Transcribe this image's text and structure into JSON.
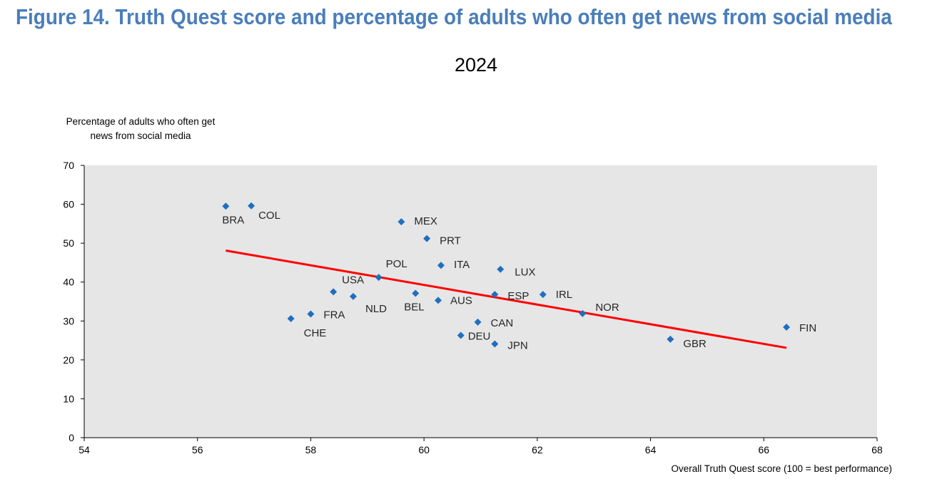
{
  "figure": {
    "title": "Figure 14. Truth Quest score and percentage of adults who often get news from social media",
    "subtitle": "2024"
  },
  "colors": {
    "title": "#4a7ebb",
    "marker": "#1f6fbf",
    "trend": "#ff0000",
    "plot_bg": "#e6e6e6"
  },
  "chart_data": {
    "type": "scatter",
    "ylabel_lines": [
      "Percentage of adults who often get",
      "news from social media"
    ],
    "xlabel": "Overall Truth Quest score (100 = best performance)",
    "xlim": [
      54,
      68
    ],
    "ylim": [
      0,
      70
    ],
    "xticks": [
      54,
      56,
      58,
      60,
      62,
      64,
      66,
      68
    ],
    "yticks": [
      0,
      10,
      20,
      30,
      40,
      50,
      60,
      70
    ],
    "points": [
      {
        "label": "BRA",
        "x": 56.5,
        "y": 59.5
      },
      {
        "label": "COL",
        "x": 56.95,
        "y": 59.6
      },
      {
        "label": "MEX",
        "x": 59.6,
        "y": 55.5
      },
      {
        "label": "PRT",
        "x": 60.05,
        "y": 51.2
      },
      {
        "label": "POL",
        "x": 59.2,
        "y": 41.2
      },
      {
        "label": "ITA",
        "x": 60.3,
        "y": 44.3
      },
      {
        "label": "LUX",
        "x": 61.35,
        "y": 43.3
      },
      {
        "label": "USA",
        "x": 58.4,
        "y": 37.5
      },
      {
        "label": "NLD",
        "x": 58.75,
        "y": 36.3
      },
      {
        "label": "BEL",
        "x": 59.85,
        "y": 37.1
      },
      {
        "label": "AUS",
        "x": 60.25,
        "y": 35.3
      },
      {
        "label": "ESP",
        "x": 61.25,
        "y": 36.8
      },
      {
        "label": "IRL",
        "x": 62.1,
        "y": 36.8
      },
      {
        "label": "NOR",
        "x": 62.8,
        "y": 31.9
      },
      {
        "label": "FRA",
        "x": 58.0,
        "y": 31.8
      },
      {
        "label": "CHE",
        "x": 57.65,
        "y": 30.6
      },
      {
        "label": "CAN",
        "x": 60.95,
        "y": 29.7
      },
      {
        "label": "DEU",
        "x": 60.65,
        "y": 26.3
      },
      {
        "label": "JPN",
        "x": 61.25,
        "y": 24.1
      },
      {
        "label": "GBR",
        "x": 64.35,
        "y": 25.3
      },
      {
        "label": "FIN",
        "x": 66.4,
        "y": 28.4
      }
    ],
    "trendline": {
      "x": [
        56.5,
        66.4
      ],
      "y": [
        48.1,
        23.1
      ]
    }
  }
}
